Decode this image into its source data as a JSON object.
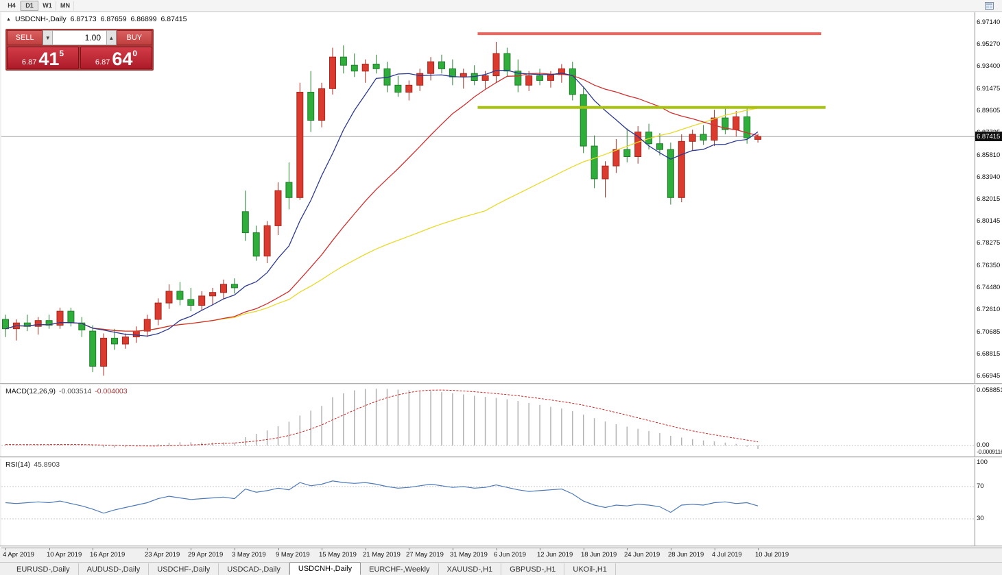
{
  "toolbar": {
    "timeframes": [
      {
        "label": "H4",
        "active": false
      },
      {
        "label": "D1",
        "active": true
      },
      {
        "label": "W1",
        "active": false
      },
      {
        "label": "MN",
        "active": false
      }
    ]
  },
  "header": {
    "marker": "▲",
    "title": "USDCNH-,Daily",
    "open": "6.87173",
    "high": "6.87659",
    "low": "6.86899",
    "close": "6.87415"
  },
  "trade_panel": {
    "sell_label": "SELL",
    "buy_label": "BUY",
    "volume": "1.00",
    "spin_down": "▼",
    "spin_up": "▲",
    "sell_price_main": "6.87",
    "sell_price_big": "41",
    "sell_price_sup": "5",
    "buy_price_main": "6.87",
    "buy_price_big": "64",
    "buy_price_sup": "0"
  },
  "macd_panel": {
    "label": "MACD(12,26,9)",
    "value1": "-0.003514",
    "value2": "-0.004003",
    "scale_max": "0.058851",
    "scale_zero": "0.00",
    "scale_min": "-0.0009116"
  },
  "rsi_panel": {
    "label": "RSI(14)",
    "value": "45.8903",
    "scale_top": "100",
    "level_high": "70",
    "level_low": "30"
  },
  "price_scale_labels": [
    "6.97140",
    "6.95270",
    "6.93400",
    "6.91475",
    "6.89605",
    "6.87735",
    "6.85810",
    "6.83940",
    "6.82015",
    "6.80145",
    "6.78275",
    "6.76350",
    "6.74480",
    "6.72610",
    "6.70685",
    "6.68815",
    "6.66945"
  ],
  "current_price_label": "6.87415",
  "date_ticks": [
    {
      "i": 0,
      "label": "4 Apr 2019"
    },
    {
      "i": 4,
      "label": "10 Apr 2019"
    },
    {
      "i": 8,
      "label": "16 Apr 2019"
    },
    {
      "i": 13,
      "label": "23 Apr 2019"
    },
    {
      "i": 17,
      "label": "29 Apr 2019"
    },
    {
      "i": 21,
      "label": "3 May 2019"
    },
    {
      "i": 25,
      "label": "9 May 2019"
    },
    {
      "i": 29,
      "label": "15 May 2019"
    },
    {
      "i": 33,
      "label": "21 May 2019"
    },
    {
      "i": 37,
      "label": "27 May 2019"
    },
    {
      "i": 41,
      "label": "31 May 2019"
    },
    {
      "i": 45,
      "label": "6 Jun 2019"
    },
    {
      "i": 49,
      "label": "12 Jun 2019"
    },
    {
      "i": 53,
      "label": "18 Jun 2019"
    },
    {
      "i": 57,
      "label": "24 Jun 2019"
    },
    {
      "i": 61,
      "label": "28 Jun 2019"
    },
    {
      "i": 65,
      "label": "4 Jul 2019"
    },
    {
      "i": 69,
      "label": "10 Jul 2019"
    }
  ],
  "tabs": [
    {
      "label": "EURUSD-,Daily",
      "active": false
    },
    {
      "label": "AUDUSD-,Daily",
      "active": false
    },
    {
      "label": "USDCHF-,Daily",
      "active": false
    },
    {
      "label": "USDCAD-,Daily",
      "active": false
    },
    {
      "label": "USDCNH-,Daily",
      "active": true
    },
    {
      "label": "EURCHF-,Weekly",
      "active": false
    },
    {
      "label": "XAUUSD-,H1",
      "active": false
    },
    {
      "label": "GBPUSD-,H1",
      "active": false
    },
    {
      "label": "UKOil-,H1",
      "active": false
    }
  ],
  "chart_data": {
    "type": "candlestick",
    "symbol": "USDCNH-",
    "timeframe": "Daily",
    "current_price": 6.87415,
    "price_axis_top": 6.9714,
    "price_axis_bottom": 6.66945,
    "ma_periods": [
      8,
      20,
      45
    ],
    "colors": {
      "up": "#db3b2e",
      "up_border": "#a8261c",
      "down": "#2fae3b",
      "down_border": "#1f7e2a",
      "ma_fast": "#2b3990",
      "ma_mid": "#d12f2f",
      "ma_slow": "#e8d92b",
      "macd_hist": "#b0b0b0",
      "macd_signal": "#cc2222",
      "rsi_line": "#4b79b8"
    },
    "hlines": [
      {
        "name": "resistance-line",
        "price": 6.962,
        "from_i": 43.3,
        "to_i": 74.8,
        "color": "#f2635c",
        "width": 4
      },
      {
        "name": "support-line",
        "price": 6.899,
        "from_i": 43.3,
        "to_i": 75.2,
        "color": "#a8c20e",
        "width": 4
      }
    ],
    "candles": [
      [
        6.718,
        6.722,
        6.703,
        6.71
      ],
      [
        6.71,
        6.718,
        6.7,
        6.715
      ],
      [
        6.715,
        6.722,
        6.708,
        6.712
      ],
      [
        6.712,
        6.72,
        6.705,
        6.717
      ],
      [
        6.717,
        6.722,
        6.71,
        6.713
      ],
      [
        6.713,
        6.728,
        6.71,
        6.725
      ],
      [
        6.725,
        6.728,
        6.712,
        6.715
      ],
      [
        6.715,
        6.72,
        6.703,
        6.709
      ],
      [
        6.708,
        6.713,
        6.673,
        6.678
      ],
      [
        6.678,
        6.706,
        6.67,
        6.702
      ],
      [
        6.702,
        6.71,
        6.692,
        6.697
      ],
      [
        6.697,
        6.706,
        6.693,
        6.703
      ],
      [
        6.703,
        6.712,
        6.698,
        6.708
      ],
      [
        6.708,
        6.722,
        6.703,
        6.718
      ],
      [
        6.718,
        6.736,
        6.713,
        6.732
      ],
      [
        6.732,
        6.748,
        6.727,
        6.742
      ],
      [
        6.742,
        6.75,
        6.73,
        6.735
      ],
      [
        6.735,
        6.745,
        6.725,
        6.73
      ],
      [
        6.73,
        6.742,
        6.726,
        6.738
      ],
      [
        6.738,
        6.745,
        6.73,
        6.741
      ],
      [
        6.741,
        6.752,
        6.735,
        6.748
      ],
      [
        6.748,
        6.753,
        6.74,
        6.745
      ],
      [
        6.81,
        6.828,
        6.785,
        6.792
      ],
      [
        6.792,
        6.798,
        6.768,
        6.772
      ],
      [
        6.772,
        6.802,
        6.766,
        6.798
      ],
      [
        6.798,
        6.835,
        6.79,
        6.828
      ],
      [
        6.835,
        6.852,
        6.812,
        6.822
      ],
      [
        6.822,
        6.92,
        6.82,
        6.912
      ],
      [
        6.912,
        6.93,
        6.878,
        6.888
      ],
      [
        6.888,
        6.92,
        6.882,
        6.915
      ],
      [
        6.915,
        6.95,
        6.91,
        6.942
      ],
      [
        6.942,
        6.952,
        6.928,
        6.935
      ],
      [
        6.935,
        6.945,
        6.925,
        6.93
      ],
      [
        6.93,
        6.94,
        6.92,
        6.936
      ],
      [
        6.936,
        6.944,
        6.928,
        6.932
      ],
      [
        6.932,
        6.938,
        6.912,
        6.918
      ],
      [
        6.918,
        6.926,
        6.908,
        6.912
      ],
      [
        6.912,
        6.922,
        6.905,
        6.918
      ],
      [
        6.918,
        6.932,
        6.913,
        6.928
      ],
      [
        6.928,
        6.942,
        6.922,
        6.938
      ],
      [
        6.938,
        6.944,
        6.928,
        6.932
      ],
      [
        6.932,
        6.94,
        6.918,
        6.925
      ],
      [
        6.925,
        6.932,
        6.915,
        6.928
      ],
      [
        6.928,
        6.935,
        6.918,
        6.922
      ],
      [
        6.922,
        6.93,
        6.915,
        6.926
      ],
      [
        6.926,
        6.955,
        6.92,
        6.945
      ],
      [
        6.945,
        6.95,
        6.925,
        6.93
      ],
      [
        6.93,
        6.94,
        6.912,
        6.918
      ],
      [
        6.918,
        6.93,
        6.913,
        6.926
      ],
      [
        6.926,
        6.932,
        6.918,
        6.922
      ],
      [
        6.922,
        6.93,
        6.916,
        6.927
      ],
      [
        6.927,
        6.936,
        6.92,
        6.932
      ],
      [
        6.932,
        6.938,
        6.905,
        6.91
      ],
      [
        6.91,
        6.916,
        6.86,
        6.866
      ],
      [
        6.866,
        6.875,
        6.83,
        6.838
      ],
      [
        6.838,
        6.853,
        6.822,
        6.849
      ],
      [
        6.849,
        6.872,
        6.843,
        6.863
      ],
      [
        6.863,
        6.881,
        6.852,
        6.857
      ],
      [
        6.857,
        6.883,
        6.851,
        6.878
      ],
      [
        6.878,
        6.885,
        6.863,
        6.868
      ],
      [
        6.868,
        6.877,
        6.858,
        6.863
      ],
      [
        6.863,
        6.869,
        6.816,
        6.822
      ],
      [
        6.822,
        6.876,
        6.818,
        6.87
      ],
      [
        6.87,
        6.88,
        6.862,
        6.876
      ],
      [
        6.876,
        6.884,
        6.867,
        6.871
      ],
      [
        6.871,
        6.897,
        6.866,
        6.89
      ],
      [
        6.89,
        6.899,
        6.876,
        6.88
      ],
      [
        6.88,
        6.896,
        6.874,
        6.891
      ],
      [
        6.891,
        6.898,
        6.868,
        6.873
      ],
      [
        6.8717,
        6.8766,
        6.869,
        6.8742
      ]
    ],
    "macd": [
      0.001,
      0.0009,
      0.0008,
      0.0009,
      0.001,
      0.0012,
      0.001,
      0.0006,
      -0.0008,
      -0.0018,
      -0.0022,
      -0.0018,
      -0.001,
      0.0002,
      0.0015,
      0.0028,
      0.0034,
      0.0033,
      0.003,
      0.003,
      0.0032,
      0.003,
      0.0085,
      0.012,
      0.0155,
      0.02,
      0.0245,
      0.031,
      0.036,
      0.041,
      0.05,
      0.054,
      0.057,
      0.0585,
      0.0588,
      0.0585,
      0.0578,
      0.0572,
      0.0568,
      0.0562,
      0.0552,
      0.054,
      0.0528,
      0.0515,
      0.0503,
      0.0492,
      0.0478,
      0.046,
      0.044,
      0.042,
      0.04,
      0.0382,
      0.0355,
      0.032,
      0.0282,
      0.0248,
      0.022,
      0.0195,
      0.0172,
      0.015,
      0.0128,
      0.01,
      0.0082,
      0.0066,
      0.0052,
      0.0042,
      0.003,
      0.0016,
      -0.0012,
      -0.0035
    ],
    "macd_signal_period": 9,
    "macd_scale_max": 0.058851,
    "rsi": [
      50,
      49,
      50,
      51,
      50,
      52,
      49,
      46,
      42,
      37,
      41,
      44,
      47,
      50,
      55,
      58,
      56,
      54,
      55,
      56,
      57,
      55,
      67,
      63,
      65,
      68,
      66,
      75,
      71,
      73,
      77,
      75,
      74,
      75,
      73,
      70,
      68,
      69,
      71,
      73,
      71,
      69,
      70,
      68,
      69,
      72,
      69,
      66,
      64,
      65,
      66,
      67,
      61,
      52,
      47,
      44,
      47,
      46,
      48,
      47,
      45,
      38,
      47,
      48,
      47,
      50,
      51,
      49,
      50,
      46
    ],
    "rsi_levels": [
      70,
      30
    ]
  }
}
